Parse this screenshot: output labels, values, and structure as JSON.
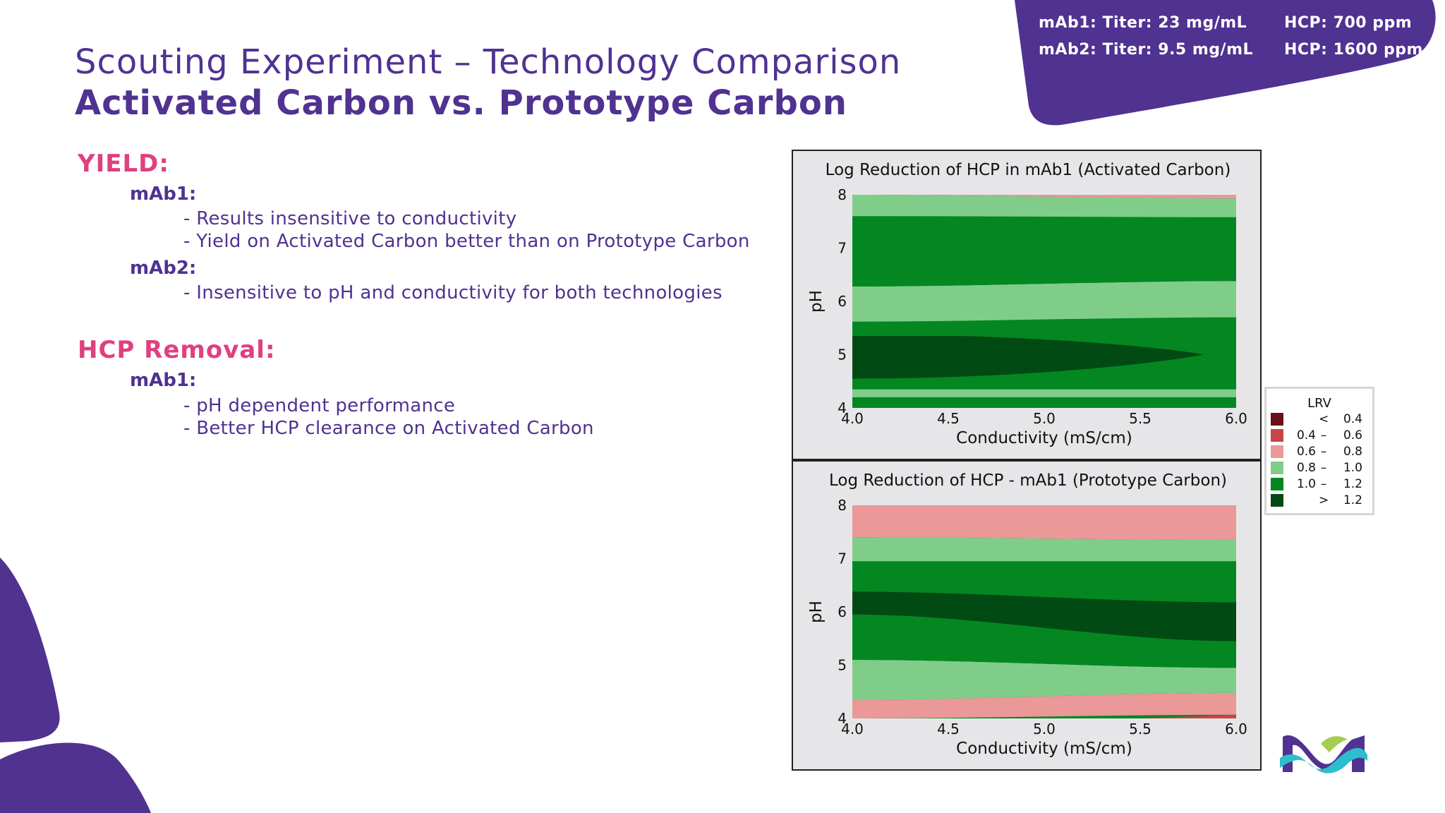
{
  "slide": {
    "title_line1": "Scouting Experiment – Technology Comparison",
    "title_line2": "Activated Carbon vs. Prototype Carbon",
    "badge": {
      "row1_left": "mAb1: Titer: 23 mg/mL",
      "row1_right": "HCP: 700 ppm",
      "row2_left": "mAb2: Titer: 9.5 mg/mL",
      "row2_right": "HCP: 1600 ppm"
    },
    "yield": {
      "heading": "YIELD:",
      "mab1_label": "mAb1:",
      "mab1_b1": "- Results insensitive to conductivity",
      "mab1_b2": "- Yield on Activated Carbon better than on Prototype Carbon",
      "mab2_label": "mAb2:",
      "mab2_b1": "- Insensitive to pH and conductivity for both technologies"
    },
    "hcp": {
      "heading": "HCP Removal:",
      "mab1_label": "mAb1:",
      "b1": "- pH dependent performance",
      "b2": "- Better HCP clearance on Activated Carbon"
    }
  },
  "colors": {
    "brand_purple": "#503291",
    "accent_pink": "#e0407f",
    "lrv_lt_0_4": "#6b0f1a",
    "lrv_0_4_0_6": "#c94545",
    "lrv_0_6_0_8": "#ea9898",
    "lrv_0_8_1_0": "#80cd8a",
    "lrv_1_0_1_2": "#048721",
    "lrv_gt_1_2": "#024a14"
  },
  "legend": {
    "title": "LRV",
    "rows": [
      {
        "lo": "",
        "dash": "<",
        "hi": "0.4",
        "color": "#6b0f1a"
      },
      {
        "lo": "0.4",
        "dash": "–",
        "hi": "0.6",
        "color": "#c94545"
      },
      {
        "lo": "0.6",
        "dash": "–",
        "hi": "0.8",
        "color": "#ea9898"
      },
      {
        "lo": "0.8",
        "dash": "–",
        "hi": "1.0",
        "color": "#80cd8a"
      },
      {
        "lo": "1.0",
        "dash": "–",
        "hi": "1.2",
        "color": "#048721"
      },
      {
        "lo": "",
        "dash": ">",
        "hi": "1.2",
        "color": "#024a14"
      }
    ]
  },
  "chart_data": [
    {
      "type": "heatmap",
      "subtype": "contour",
      "title": "Log Reduction of HCP in mAb1 (Activated Carbon)",
      "xlabel": "Conductivity (mS/cm)",
      "ylabel": "pH",
      "xlim": [
        4.0,
        6.0
      ],
      "ylim": [
        4,
        8
      ],
      "xticks": [
        "4.0",
        "4.5",
        "5.0",
        "5.5",
        "6.0"
      ],
      "yticks": [
        "4",
        "5",
        "6",
        "7",
        "8"
      ],
      "bands": [
        {
          "range": "1.0 – 1.2",
          "ph_left": [
            4.0,
            4.2
          ],
          "ph_right": [
            4.0,
            4.2
          ]
        },
        {
          "range": "0.8 – 1.0",
          "ph_left": [
            4.2,
            4.35
          ],
          "ph_right": [
            4.2,
            4.35
          ]
        },
        {
          "range": "1.0 – 1.2",
          "ph_left": [
            4.35,
            5.35
          ],
          "ph_right": [
            4.35,
            5.35
          ]
        },
        {
          "range": "> 1.2",
          "ph_left": [
            4.55,
            5.38
          ],
          "ph_right": [
            5.0,
            5.0
          ],
          "tip_conductivity": 5.83
        },
        {
          "range": "1.0 – 1.2",
          "ph_left": [
            5.35,
            5.62
          ],
          "ph_right": [
            5.35,
            5.7
          ]
        },
        {
          "range": "0.8 – 1.0",
          "ph_left": [
            5.62,
            6.28
          ],
          "ph_right": [
            5.7,
            6.38
          ]
        },
        {
          "range": "1.0 – 1.2",
          "ph_left": [
            6.28,
            7.6
          ],
          "ph_right": [
            6.38,
            7.58
          ]
        },
        {
          "range": "0.8 – 1.0",
          "ph_left": [
            7.6,
            8.0
          ],
          "ph_right": [
            7.58,
            7.93
          ]
        },
        {
          "range": "0.6 – 0.8",
          "ph_left": [
            8.0,
            8.0
          ],
          "ph_right": [
            7.93,
            8.0
          ]
        }
      ]
    },
    {
      "type": "heatmap",
      "subtype": "contour",
      "title": "Log Reduction of HCP - mAb1 (Prototype Carbon)",
      "xlabel": "Conductivity (mS/cm)",
      "ylabel": "pH",
      "xlim": [
        4.0,
        6.0
      ],
      "ylim": [
        4,
        8
      ],
      "xticks": [
        "4.0",
        "4.5",
        "5.0",
        "5.5",
        "6.0"
      ],
      "yticks": [
        "4",
        "5",
        "6",
        "7",
        "8"
      ],
      "bands": [
        {
          "range": "0.6 – 0.8",
          "ph_left": [
            4.0,
            4.35
          ],
          "ph_right": [
            4.07,
            4.48
          ]
        },
        {
          "range": "0.4 – 0.6",
          "ph_left": [
            4.0,
            4.0
          ],
          "ph_right": [
            4.0,
            4.07
          ],
          "start_conductivity": 5.5
        },
        {
          "range": "0.8 – 1.0",
          "ph_left": [
            4.35,
            5.1
          ],
          "ph_right": [
            4.48,
            4.95
          ]
        },
        {
          "range": "1.0 – 1.2",
          "ph_left": [
            5.1,
            5.95
          ],
          "ph_right": [
            4.95,
            5.45
          ]
        },
        {
          "range": "> 1.2",
          "ph_left": [
            5.95,
            6.38
          ],
          "ph_right": [
            5.45,
            6.18
          ]
        },
        {
          "range": "1.0 – 1.2",
          "ph_left": [
            6.38,
            6.95
          ],
          "ph_right": [
            6.18,
            6.95
          ]
        },
        {
          "range": "0.8 – 1.0",
          "ph_left": [
            6.95,
            7.4
          ],
          "ph_right": [
            6.95,
            7.35
          ]
        },
        {
          "range": "0.6 – 0.8",
          "ph_left": [
            7.4,
            8.0
          ],
          "ph_right": [
            7.35,
            8.0
          ]
        }
      ]
    }
  ]
}
